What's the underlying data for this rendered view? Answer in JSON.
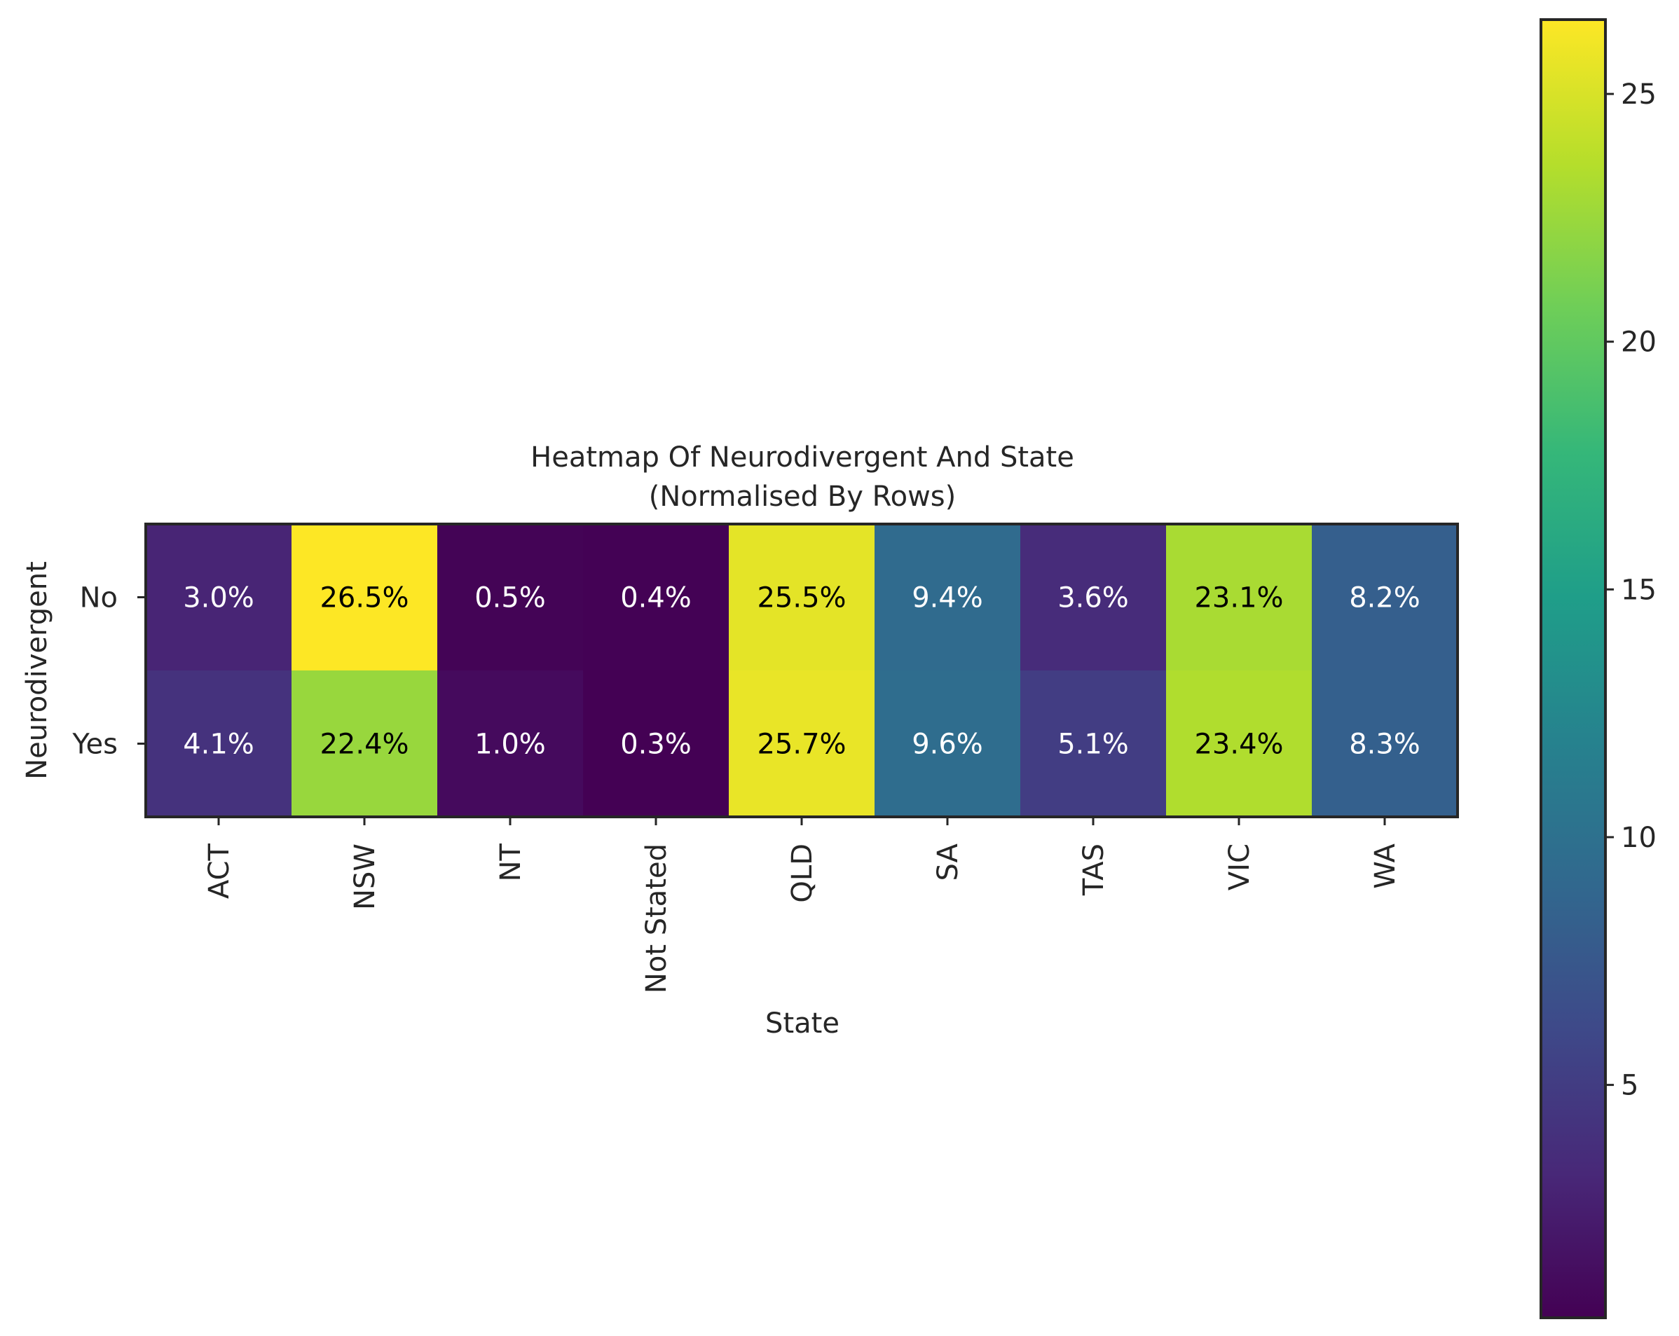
{
  "chart_data": {
    "type": "heatmap",
    "title": "Heatmap Of Neurodivergent And State\n(Normalised By Rows)",
    "title_lines": [
      "Heatmap Of Neurodivergent And State",
      "(Normalised By Rows)"
    ],
    "xlabel": "State",
    "ylabel": "Neurodivergent",
    "x_categories": [
      "ACT",
      "NSW",
      "NT",
      "Not Stated",
      "QLD",
      "SA",
      "TAS",
      "VIC",
      "WA"
    ],
    "y_categories": [
      "No",
      "Yes"
    ],
    "values": [
      [
        3.0,
        26.5,
        0.5,
        0.4,
        25.5,
        9.4,
        3.6,
        23.1,
        8.2
      ],
      [
        4.1,
        22.4,
        1.0,
        0.3,
        25.7,
        9.6,
        5.1,
        23.4,
        8.3
      ]
    ],
    "annotations": [
      [
        "3.0%",
        "26.5%",
        "0.5%",
        "0.4%",
        "25.5%",
        "9.4%",
        "3.6%",
        "23.1%",
        "8.2%"
      ],
      [
        "4.1%",
        "22.4%",
        "1.0%",
        "0.3%",
        "25.7%",
        "9.6%",
        "5.1%",
        "23.4%",
        "8.3%"
      ]
    ],
    "colormap": "viridis",
    "colorbar": {
      "range": [
        0.3,
        26.5
      ],
      "ticks": [
        5,
        10,
        15,
        20,
        25
      ],
      "tick_labels": [
        "5",
        "10",
        "15",
        "20",
        "25"
      ]
    },
    "grid": false
  }
}
